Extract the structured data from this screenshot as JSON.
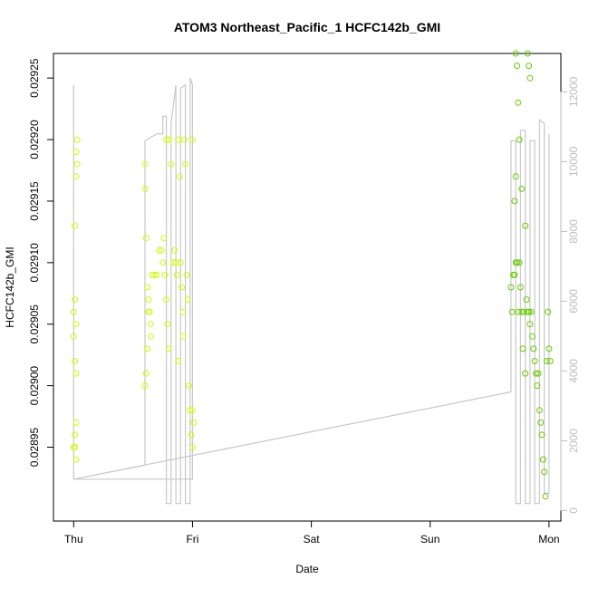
{
  "chart_data": {
    "type": "scatter",
    "title": "ATOM3 Northeast_Pacific_1 HCFC142b_GMI",
    "xlabel": "Date",
    "ylabel": "HCFC142b_GMI",
    "x_ticks": [
      "Thu",
      "Fri",
      "Sat",
      "Sun",
      "Mon"
    ],
    "x_range_days": [
      -0.17,
      4.1
    ],
    "y_ticks": [
      "0.02895",
      "0.02900",
      "0.02905",
      "0.02910",
      "0.02915",
      "0.02920",
      "0.02925"
    ],
    "ylim": [
      0.02889,
      0.02927
    ],
    "y2_ticks": [
      "0",
      "2000",
      "4000",
      "6000",
      "8000",
      "10000",
      "12000"
    ],
    "y2lim": [
      -300,
      13100
    ],
    "grid": false,
    "colors": {
      "scatter_high_altitude": "#ccff00",
      "scatter_low_altitude": "#66cc00",
      "altitude_line": "#c8c8c8",
      "right_axis": "#bdbdbd"
    },
    "series": [
      {
        "type": "scatter",
        "points": [
          [
            0.02,
            0.02919
          ],
          [
            0.03,
            0.02918
          ],
          [
            0.02,
            0.02917
          ],
          [
            0.03,
            0.0292
          ],
          [
            0.01,
            0.02913
          ],
          [
            0.0,
            0.02906
          ],
          [
            0.01,
            0.02907
          ],
          [
            0.02,
            0.02905
          ],
          [
            0.0,
            0.02904
          ],
          [
            0.01,
            0.02902
          ],
          [
            0.02,
            0.02901
          ],
          [
            0.0,
            0.02895
          ],
          [
            0.01,
            0.02896
          ],
          [
            0.02,
            0.02894
          ],
          [
            0.01,
            0.02895
          ],
          [
            0.02,
            0.02897
          ],
          [
            0.6,
            0.02918
          ],
          [
            0.6,
            0.02916
          ],
          [
            0.61,
            0.02912
          ],
          [
            0.62,
            0.02908
          ],
          [
            0.63,
            0.02907
          ],
          [
            0.63,
            0.02906
          ],
          [
            0.64,
            0.02906
          ],
          [
            0.65,
            0.02905
          ],
          [
            0.65,
            0.02904
          ],
          [
            0.62,
            0.02903
          ],
          [
            0.61,
            0.02901
          ],
          [
            0.6,
            0.029
          ],
          [
            0.66,
            0.02909
          ],
          [
            0.68,
            0.02909
          ],
          [
            0.7,
            0.02909
          ],
          [
            0.72,
            0.02911
          ],
          [
            0.74,
            0.02911
          ],
          [
            0.75,
            0.0291
          ],
          [
            0.76,
            0.02912
          ],
          [
            0.77,
            0.02909
          ],
          [
            0.78,
            0.02907
          ],
          [
            0.79,
            0.02905
          ],
          [
            0.8,
            0.02903
          ],
          [
            0.78,
            0.0292
          ],
          [
            0.8,
            0.0292
          ],
          [
            0.82,
            0.02918
          ],
          [
            0.84,
            0.0291
          ],
          [
            0.85,
            0.02911
          ],
          [
            0.86,
            0.0291
          ],
          [
            0.87,
            0.02909
          ],
          [
            0.88,
            0.0292
          ],
          [
            0.89,
            0.02917
          ],
          [
            0.9,
            0.0291
          ],
          [
            0.91,
            0.02908
          ],
          [
            0.92,
            0.02906
          ],
          [
            0.93,
            0.0292
          ],
          [
            0.94,
            0.02918
          ],
          [
            0.95,
            0.02909
          ],
          [
            0.96,
            0.02907
          ],
          [
            0.97,
            0.029
          ],
          [
            0.98,
            0.02898
          ],
          [
            0.99,
            0.02896
          ],
          [
            1.0,
            0.0292
          ],
          [
            1.0,
            0.02898
          ],
          [
            1.01,
            0.02897
          ],
          [
            1.0,
            0.02895
          ],
          [
            0.92,
            0.02904
          ],
          [
            0.88,
            0.02902
          ]
        ],
        "color": "#ccff00"
      },
      {
        "type": "scatter",
        "points": [
          [
            3.68,
            0.02908
          ],
          [
            3.69,
            0.02906
          ],
          [
            3.7,
            0.02909
          ],
          [
            3.71,
            0.02909
          ],
          [
            3.72,
            0.0291
          ],
          [
            3.73,
            0.0291
          ],
          [
            3.74,
            0.02906
          ],
          [
            3.75,
            0.0291
          ],
          [
            3.76,
            0.02908
          ],
          [
            3.77,
            0.02906
          ],
          [
            3.78,
            0.02903
          ],
          [
            3.79,
            0.02906
          ],
          [
            3.8,
            0.02901
          ],
          [
            3.81,
            0.02907
          ],
          [
            3.82,
            0.02906
          ],
          [
            3.83,
            0.02906
          ],
          [
            3.84,
            0.02905
          ],
          [
            3.85,
            0.02906
          ],
          [
            3.86,
            0.02904
          ],
          [
            3.87,
            0.02903
          ],
          [
            3.88,
            0.02902
          ],
          [
            3.89,
            0.02901
          ],
          [
            3.9,
            0.029
          ],
          [
            3.91,
            0.02901
          ],
          [
            3.92,
            0.02898
          ],
          [
            3.93,
            0.02897
          ],
          [
            3.94,
            0.02896
          ],
          [
            3.95,
            0.02894
          ],
          [
            3.96,
            0.02893
          ],
          [
            3.97,
            0.02891
          ],
          [
            3.98,
            0.02902
          ],
          [
            3.99,
            0.02906
          ],
          [
            4.0,
            0.02903
          ],
          [
            4.01,
            0.02902
          ],
          [
            3.72,
            0.02927
          ],
          [
            3.73,
            0.02926
          ],
          [
            3.82,
            0.02927
          ],
          [
            3.83,
            0.02926
          ],
          [
            3.84,
            0.02925
          ],
          [
            3.72,
            0.02917
          ],
          [
            3.77,
            0.02916
          ],
          [
            3.74,
            0.02923
          ],
          [
            3.8,
            0.02913
          ],
          [
            3.75,
            0.0292
          ],
          [
            3.71,
            0.02915
          ]
        ],
        "color": "#66cc00"
      },
      {
        "type": "line",
        "axis": "right",
        "name": "",
        "points": [
          [
            0.0,
            12200
          ],
          [
            0.0,
            900
          ],
          [
            0.6,
            1300
          ],
          [
            0.6,
            10000
          ],
          [
            0.6,
            10600
          ],
          [
            0.7,
            10800
          ],
          [
            0.75,
            10800
          ],
          [
            0.75,
            11300
          ],
          [
            0.78,
            11300
          ],
          [
            0.78,
            200
          ],
          [
            0.82,
            200
          ],
          [
            0.82,
            11100
          ],
          [
            0.86,
            12200
          ],
          [
            0.86,
            200
          ],
          [
            0.9,
            200
          ],
          [
            0.9,
            12100
          ],
          [
            0.94,
            12200
          ],
          [
            0.94,
            200
          ],
          [
            0.98,
            200
          ],
          [
            0.98,
            12400
          ],
          [
            1.0,
            12200
          ],
          [
            1.0,
            900
          ],
          [
            0.0,
            900
          ],
          [
            3.68,
            3400
          ],
          [
            3.68,
            10600
          ],
          [
            3.72,
            10600
          ],
          [
            3.72,
            200
          ],
          [
            3.76,
            200
          ],
          [
            3.76,
            10900
          ],
          [
            3.8,
            10900
          ],
          [
            3.8,
            200
          ],
          [
            3.84,
            200
          ],
          [
            3.84,
            10600
          ],
          [
            3.88,
            10600
          ],
          [
            3.88,
            200
          ],
          [
            3.92,
            200
          ],
          [
            3.92,
            11200
          ],
          [
            3.96,
            11100
          ],
          [
            3.96,
            500
          ],
          [
            4.0,
            500
          ],
          [
            4.0,
            10800
          ]
        ],
        "color": "#c8c8c8"
      }
    ]
  }
}
